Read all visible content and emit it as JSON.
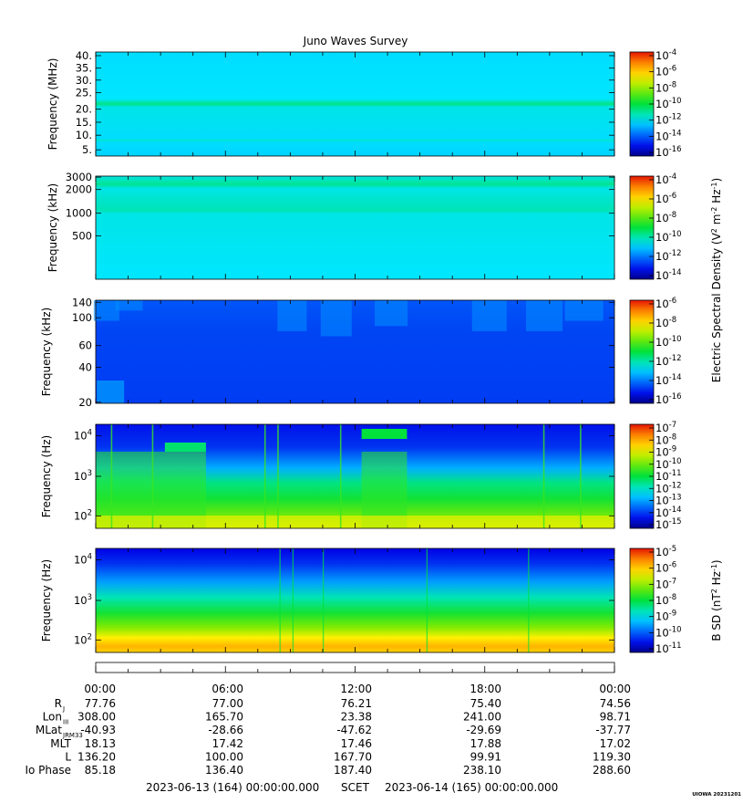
{
  "title": "Juno Waves Survey",
  "panels": [
    {
      "ylabel": "Frequency (MHz)",
      "yticks": [
        "40.",
        "35.",
        "30.",
        "25.",
        "20.",
        "15.",
        "10.",
        "5."
      ],
      "colorbar_ticks": [
        "10^-4",
        "10^-6",
        "10^-8",
        "10^-10",
        "10^-12",
        "10^-14",
        "10^-16"
      ],
      "colorbar_range_exp": [
        -17,
        -4
      ],
      "colorbar_label": ""
    },
    {
      "ylabel": "Frequency (kHz)",
      "yticks": [
        "3000",
        "2000",
        "1000",
        "500"
      ],
      "colorbar_ticks": [
        "10^-4",
        "10^-6",
        "10^-8",
        "10^-10",
        "10^-12",
        "10^-14"
      ],
      "colorbar_range_exp": [
        -15,
        -3
      ],
      "colorbar_label": ""
    },
    {
      "ylabel": "Frequency (kHz)",
      "yticks": [
        "140",
        "100",
        "60",
        "40",
        "20"
      ],
      "colorbar_ticks": [
        "10^-6",
        "10^-8",
        "10^-10",
        "10^-12",
        "10^-14",
        "10^-16"
      ],
      "colorbar_range_exp": [
        -16,
        -6
      ],
      "colorbar_label": ""
    },
    {
      "ylabel": "Frequency (Hz)",
      "yticks": [
        "10^4",
        "10^3",
        "10^2"
      ],
      "colorbar_ticks": [
        "10^-7",
        "10^-8",
        "10^-9",
        "10^-10",
        "10^-11",
        "10^-12",
        "10^-13",
        "10^-14",
        "10^-15"
      ],
      "colorbar_range_exp": [
        -15,
        -7
      ],
      "colorbar_label": ""
    },
    {
      "ylabel": "Frequency (Hz)",
      "yticks": [
        "10^4",
        "10^3",
        "10^2"
      ],
      "colorbar_ticks": [
        "10^-5",
        "10^-6",
        "10^-7",
        "10^-8",
        "10^-9",
        "10^-10",
        "10^-11"
      ],
      "colorbar_range_exp": [
        -11,
        -4.5
      ],
      "colorbar_label": "B SD (nT^2 Hz^-1)"
    }
  ],
  "shared_colorbar_label": "Electric Spectral Density (V^2 m^-2 Hz^-1)",
  "ephemeris": {
    "times": [
      "00:00",
      "06:00",
      "12:00",
      "18:00",
      "00:00"
    ],
    "rows": [
      {
        "label": "R",
        "sub": "J",
        "values": [
          "77.76",
          "77.00",
          "76.21",
          "75.40",
          "74.56"
        ]
      },
      {
        "label": "Lon",
        "sub": "III",
        "values": [
          "308.00",
          "165.70",
          "23.38",
          "241.00",
          "98.71"
        ]
      },
      {
        "label": "MLat",
        "sub": "JRM33",
        "values": [
          "-40.93",
          "-28.66",
          "-47.62",
          "-29.69",
          "-37.77"
        ]
      },
      {
        "label": "MLT",
        "sub": "",
        "values": [
          "18.13",
          "17.42",
          "17.46",
          "17.88",
          "17.02"
        ]
      },
      {
        "label": "L",
        "sub": "",
        "values": [
          "136.20",
          "100.00",
          "167.70",
          "99.91",
          "119.30"
        ]
      },
      {
        "label": "Io Phase",
        "sub": "",
        "values": [
          "85.18",
          "136.40",
          "187.40",
          "238.10",
          "288.60"
        ]
      }
    ]
  },
  "footer": {
    "start": "2023-06-13 (164) 00:00:00.000",
    "scet": "SCET",
    "end": "2023-06-14 (165) 00:00:00.000"
  },
  "credit": "UIOWA 20231201",
  "chart_data": {
    "type": "heatmap",
    "title": "Juno Waves Survey",
    "x_range_hours": [
      0,
      24
    ],
    "xticks": [
      "00:00",
      "06:00",
      "12:00",
      "18:00",
      "00:00"
    ],
    "panels": [
      {
        "ylabel": "Frequency (MHz)",
        "yscale": "linear",
        "ylim": [
          3,
          41
        ],
        "colorscale_log10": [
          -17,
          -4
        ],
        "description_values": {
          "background": -13.5,
          "band_20MHz": -12.2
        }
      },
      {
        "ylabel": "Frequency (kHz)",
        "yscale": "log",
        "ylim": [
          150,
          3100
        ],
        "colorscale_log10": [
          -15,
          -3
        ],
        "description_values": {
          "background": -12.0,
          "band_1000kHz": -11.3,
          "band_2000kHz": -10.6
        }
      },
      {
        "ylabel": "Frequency (kHz)",
        "yscale": "linear",
        "ylim": [
          20,
          140
        ],
        "colorscale_log10": [
          -16,
          -6
        ],
        "description_values": {
          "background": -14.3
        }
      },
      {
        "ylabel": "Frequency (Hz)",
        "yscale": "log",
        "ylim": [
          50,
          20000
        ],
        "colorscale_log10": [
          -15,
          -7
        ],
        "enhancements_hours": [
          [
            0,
            5.1
          ],
          [
            12.3,
            14.4
          ]
        ]
      },
      {
        "ylabel": "Frequency (Hz)",
        "yscale": "log",
        "ylim": [
          50,
          20000
        ],
        "colorscale_log10": [
          -11,
          -4.5
        ],
        "colorbar_label": "B SD (nT^2 Hz^-1)"
      }
    ]
  }
}
